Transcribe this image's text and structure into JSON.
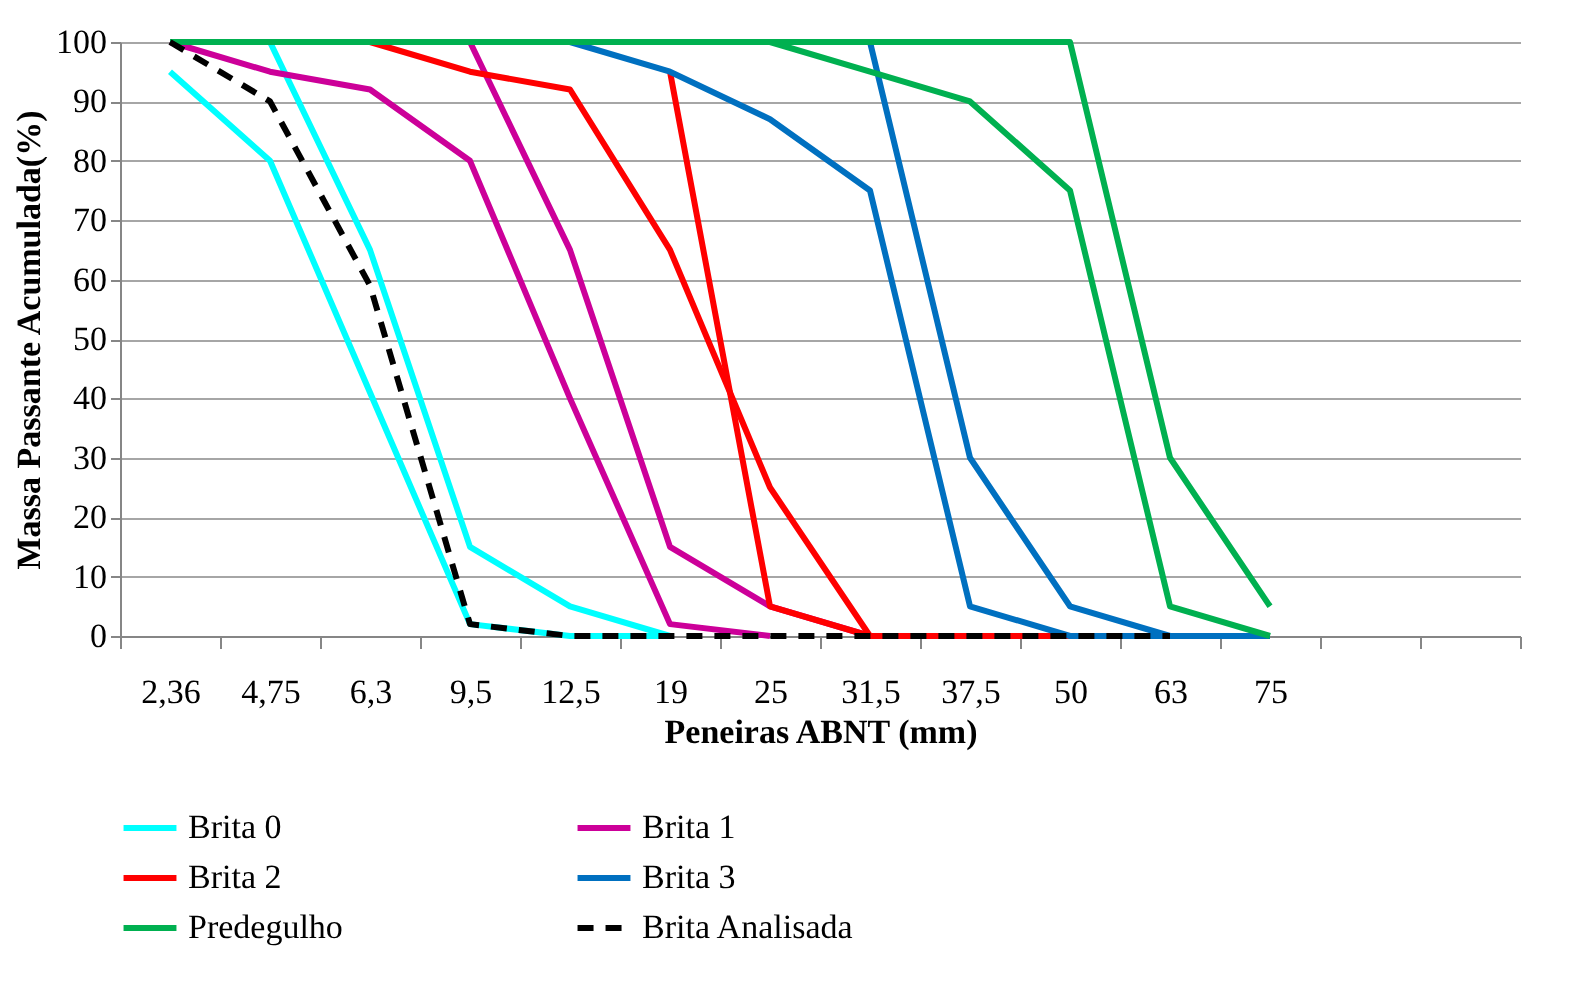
{
  "chart_data": {
    "type": "line",
    "xlabel": "Peneiras ABNT (mm)",
    "ylabel": "Massa Passante Acumulada(%)",
    "categories": [
      "2,36",
      "4,75",
      "6,3",
      "9,5",
      "12,5",
      "19",
      "25",
      "31,5",
      "37,5",
      "50",
      "63",
      "75",
      null,
      null
    ],
    "ylim": [
      0,
      100
    ],
    "yticks": [
      0,
      10,
      20,
      30,
      40,
      50,
      60,
      70,
      80,
      90,
      100
    ],
    "grid": "y",
    "legend": "bottom",
    "marker": "none",
    "series": [
      {
        "name": "Brita 0",
        "color": "#00ffff",
        "line_style": "solid",
        "values": [
          95,
          80,
          41,
          2,
          0,
          0,
          null,
          null,
          null,
          null,
          null,
          null,
          null,
          null
        ]
      },
      {
        "color": "#00ffff",
        "line_style": "solid",
        "values": [
          null,
          100,
          65,
          15,
          5,
          0,
          null,
          null,
          null,
          null,
          null,
          null,
          null,
          null
        ]
      },
      {
        "name": "Brita 1",
        "color": "#cc0099",
        "line_style": "solid",
        "values": [
          100,
          95,
          92,
          80,
          40,
          2,
          0,
          null,
          null,
          null,
          null,
          null,
          null,
          null
        ]
      },
      {
        "color": "#cc0099",
        "line_style": "solid",
        "values": [
          null,
          null,
          null,
          100,
          65,
          15,
          5,
          0,
          null,
          null,
          null,
          null,
          null,
          null
        ]
      },
      {
        "name": "Brita 2",
        "color": "#ff0000",
        "line_style": "solid",
        "values": [
          null,
          null,
          100,
          95,
          92,
          65,
          25,
          0,
          0,
          0,
          null,
          null,
          null,
          null
        ]
      },
      {
        "color": "#ff0000",
        "line_style": "solid",
        "values": [
          null,
          null,
          null,
          null,
          null,
          95,
          5,
          0,
          0,
          0,
          null,
          null,
          null,
          null
        ]
      },
      {
        "name": "Brita 3",
        "color": "#0070c0",
        "line_style": "solid",
        "values": [
          null,
          null,
          null,
          null,
          100,
          95,
          87,
          75,
          5,
          0,
          0,
          null,
          null,
          null
        ]
      },
      {
        "color": "#0070c0",
        "line_style": "solid",
        "values": [
          null,
          null,
          null,
          null,
          null,
          null,
          null,
          100,
          30,
          5,
          0,
          0,
          null,
          null
        ]
      },
      {
        "color": "#00b050",
        "line_style": "solid",
        "values": [
          null,
          null,
          null,
          null,
          null,
          null,
          100,
          95,
          90,
          75,
          5,
          0,
          null,
          null
        ]
      },
      {
        "name": "Predegulho",
        "color": "#00b050",
        "line_style": "solid",
        "values": [
          100,
          100,
          100,
          100,
          100,
          100,
          100,
          100,
          100,
          100,
          30,
          5,
          null,
          null
        ]
      },
      {
        "name": "Brita Analisada",
        "color": "#000000",
        "line_style": "dashed",
        "values": [
          100,
          90,
          59,
          2,
          0,
          0,
          0,
          0,
          0,
          0,
          0,
          null,
          null,
          null
        ]
      }
    ]
  }
}
